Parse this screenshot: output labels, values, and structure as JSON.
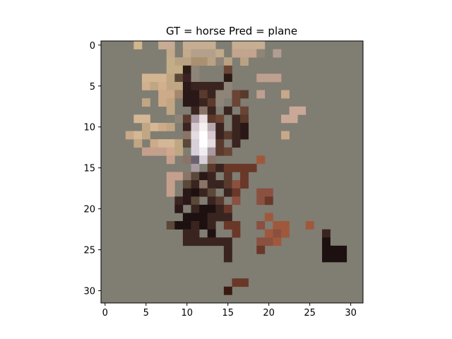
{
  "chart_data": {
    "type": "heatmap",
    "title": "GT = horse Pred = plane",
    "xlabel": "",
    "ylabel": "",
    "xlim": [
      -0.5,
      31.5
    ],
    "ylim": [
      31.5,
      -0.5
    ],
    "xticks": [
      0,
      5,
      10,
      15,
      20,
      25,
      30
    ],
    "yticks": [
      0,
      5,
      10,
      15,
      20,
      25,
      30
    ],
    "grid": false,
    "background_color": "#807d73",
    "pixels": [
      {
        "r": 0,
        "c": 4,
        "color": "#d2b78e"
      },
      {
        "r": 0,
        "c": 7,
        "color": "#c7ab94"
      },
      {
        "r": 0,
        "c": 8,
        "color": "#c7ab94"
      },
      {
        "r": 0,
        "c": 10,
        "color": "#c6ae93"
      },
      {
        "r": 0,
        "c": 11,
        "color": "#c6ae93"
      },
      {
        "r": 0,
        "c": 12,
        "color": "#c6ae93"
      },
      {
        "r": 0,
        "c": 13,
        "color": "#c6ae93"
      },
      {
        "r": 0,
        "c": 16,
        "color": "#c6ae93"
      },
      {
        "r": 0,
        "c": 17,
        "color": "#c6ae93"
      },
      {
        "r": 0,
        "c": 18,
        "color": "#c6ae93"
      },
      {
        "r": 0,
        "c": 19,
        "color": "#c6ae93"
      },
      {
        "r": 1,
        "c": 8,
        "color": "#c2aa8a"
      },
      {
        "r": 1,
        "c": 10,
        "color": "#c2aa8a"
      },
      {
        "r": 1,
        "c": 11,
        "color": "#b4a08a"
      },
      {
        "r": 1,
        "c": 12,
        "color": "#b4a08a"
      },
      {
        "r": 1,
        "c": 13,
        "color": "#b4a08a"
      },
      {
        "r": 1,
        "c": 14,
        "color": "#c2aa8a"
      },
      {
        "r": 1,
        "c": 16,
        "color": "#c2a48f"
      },
      {
        "r": 1,
        "c": 17,
        "color": "#c2a48f"
      },
      {
        "r": 1,
        "c": 18,
        "color": "#c2a48f"
      },
      {
        "r": 1,
        "c": 19,
        "color": "#8f8478"
      },
      {
        "r": 1,
        "c": 21,
        "color": "#b29d93"
      },
      {
        "r": 2,
        "c": 8,
        "color": "#c3ae88"
      },
      {
        "r": 2,
        "c": 9,
        "color": "#b9a284"
      },
      {
        "r": 2,
        "c": 10,
        "color": "#b9a284"
      },
      {
        "r": 2,
        "c": 11,
        "color": "#a89070"
      },
      {
        "r": 2,
        "c": 12,
        "color": "#a89070"
      },
      {
        "r": 2,
        "c": 13,
        "color": "#b9a284"
      },
      {
        "r": 2,
        "c": 14,
        "color": "#8f8478"
      },
      {
        "r": 2,
        "c": 15,
        "color": "#b9a284"
      },
      {
        "r": 2,
        "c": 17,
        "color": "#b9a284"
      },
      {
        "r": 3,
        "c": 8,
        "color": "#c3ae88"
      },
      {
        "r": 3,
        "c": 9,
        "color": "#c3ae88"
      },
      {
        "r": 3,
        "c": 10,
        "color": "#2c1e14"
      },
      {
        "r": 3,
        "c": 11,
        "color": "#8f8478"
      },
      {
        "r": 3,
        "c": 15,
        "color": "#6a4434"
      },
      {
        "r": 4,
        "c": 5,
        "color": "#d4b591"
      },
      {
        "r": 4,
        "c": 6,
        "color": "#d4b591"
      },
      {
        "r": 4,
        "c": 7,
        "color": "#d4b591"
      },
      {
        "r": 4,
        "c": 8,
        "color": "#c0a683"
      },
      {
        "r": 4,
        "c": 9,
        "color": "#5a4838"
      },
      {
        "r": 4,
        "c": 10,
        "color": "#3c2224"
      },
      {
        "r": 4,
        "c": 11,
        "color": "#8f8478"
      },
      {
        "r": 4,
        "c": 15,
        "color": "#2a1a14"
      },
      {
        "r": 4,
        "c": 19,
        "color": "#bea090"
      },
      {
        "r": 4,
        "c": 20,
        "color": "#bea090"
      },
      {
        "r": 4,
        "c": 21,
        "color": "#bea090"
      },
      {
        "r": 5,
        "c": 5,
        "color": "#d0b08e"
      },
      {
        "r": 5,
        "c": 6,
        "color": "#c0a683"
      },
      {
        "r": 5,
        "c": 7,
        "color": "#d0b08e"
      },
      {
        "r": 5,
        "c": 8,
        "color": "#c0a683"
      },
      {
        "r": 5,
        "c": 9,
        "color": "#c0a683"
      },
      {
        "r": 5,
        "c": 10,
        "color": "#2c1a18"
      },
      {
        "r": 5,
        "c": 11,
        "color": "#3a2420"
      },
      {
        "r": 5,
        "c": 12,
        "color": "#3a2420"
      },
      {
        "r": 5,
        "c": 13,
        "color": "#3a2420"
      },
      {
        "r": 5,
        "c": 14,
        "color": "#3a2420"
      },
      {
        "r": 5,
        "c": 15,
        "color": "#8f8478"
      },
      {
        "r": 6,
        "c": 7,
        "color": "#cdaa88"
      },
      {
        "r": 6,
        "c": 8,
        "color": "#cdaa88"
      },
      {
        "r": 6,
        "c": 9,
        "color": "#a4876c"
      },
      {
        "r": 6,
        "c": 10,
        "color": "#2a1818"
      },
      {
        "r": 6,
        "c": 11,
        "color": "#2a1818"
      },
      {
        "r": 6,
        "c": 12,
        "color": "#5a3a2c"
      },
      {
        "r": 6,
        "c": 13,
        "color": "#3a2420"
      },
      {
        "r": 6,
        "c": 14,
        "color": "#8f8478"
      },
      {
        "r": 6,
        "c": 15,
        "color": "#8f8478"
      },
      {
        "r": 6,
        "c": 16,
        "color": "#6a4434"
      },
      {
        "r": 6,
        "c": 17,
        "color": "#5a3a2c"
      },
      {
        "r": 6,
        "c": 19,
        "color": "#bea090"
      },
      {
        "r": 6,
        "c": 22,
        "color": "#c8a888"
      },
      {
        "r": 7,
        "c": 5,
        "color": "#c0a683"
      },
      {
        "r": 7,
        "c": 7,
        "color": "#cdaa88"
      },
      {
        "r": 7,
        "c": 8,
        "color": "#c0a683"
      },
      {
        "r": 7,
        "c": 10,
        "color": "#2a1818"
      },
      {
        "r": 7,
        "c": 11,
        "color": "#2a1818"
      },
      {
        "r": 7,
        "c": 12,
        "color": "#3a2420"
      },
      {
        "r": 7,
        "c": 13,
        "color": "#5a3a2c"
      },
      {
        "r": 7,
        "c": 14,
        "color": "#8f8478"
      },
      {
        "r": 7,
        "c": 16,
        "color": "#6a4434"
      },
      {
        "r": 8,
        "c": 8,
        "color": "#c0a683"
      },
      {
        "r": 8,
        "c": 11,
        "color": "#3a2420"
      },
      {
        "r": 8,
        "c": 12,
        "color": "#8a7468"
      },
      {
        "r": 8,
        "c": 13,
        "color": "#3a2420"
      },
      {
        "r": 8,
        "c": 15,
        "color": "#3a2420"
      },
      {
        "r": 8,
        "c": 17,
        "color": "#6a4434"
      },
      {
        "r": 8,
        "c": 23,
        "color": "#c9a898"
      },
      {
        "r": 8,
        "c": 24,
        "color": "#c9a898"
      },
      {
        "r": 9,
        "c": 4,
        "color": "#d4b896"
      },
      {
        "r": 9,
        "c": 5,
        "color": "#d4b896"
      },
      {
        "r": 9,
        "c": 9,
        "color": "#8f8478"
      },
      {
        "r": 9,
        "c": 10,
        "color": "#5a3a2c"
      },
      {
        "r": 9,
        "c": 11,
        "color": "#a89aa0"
      },
      {
        "r": 9,
        "c": 12,
        "color": "#e8dce0"
      },
      {
        "r": 9,
        "c": 13,
        "color": "#5a3a2c"
      },
      {
        "r": 9,
        "c": 14,
        "color": "#6a4434"
      },
      {
        "r": 9,
        "c": 16,
        "color": "#3a2420"
      },
      {
        "r": 9,
        "c": 17,
        "color": "#5a3a2c"
      },
      {
        "r": 9,
        "c": 22,
        "color": "#c9a898"
      },
      {
        "r": 9,
        "c": 23,
        "color": "#c9a898"
      },
      {
        "r": 10,
        "c": 5,
        "color": "#c0a683"
      },
      {
        "r": 10,
        "c": 6,
        "color": "#d4b896"
      },
      {
        "r": 10,
        "c": 7,
        "color": "#cdaa88"
      },
      {
        "r": 10,
        "c": 8,
        "color": "#c0a683"
      },
      {
        "r": 10,
        "c": 10,
        "color": "#3a2420"
      },
      {
        "r": 10,
        "c": 11,
        "color": "#d8c8d0"
      },
      {
        "r": 10,
        "c": 12,
        "color": "#f4f0f0"
      },
      {
        "r": 10,
        "c": 13,
        "color": "#b8a8b0"
      },
      {
        "r": 10,
        "c": 14,
        "color": "#3a2420"
      },
      {
        "r": 10,
        "c": 16,
        "color": "#3a2420"
      },
      {
        "r": 10,
        "c": 17,
        "color": "#2a1818"
      },
      {
        "r": 11,
        "c": 3,
        "color": "#c8a888"
      },
      {
        "r": 11,
        "c": 4,
        "color": "#d4b896"
      },
      {
        "r": 11,
        "c": 5,
        "color": "#c0a683"
      },
      {
        "r": 11,
        "c": 10,
        "color": "#8a7468"
      },
      {
        "r": 11,
        "c": 11,
        "color": "#e4dce0"
      },
      {
        "r": 11,
        "c": 12,
        "color": "#ffffff"
      },
      {
        "r": 11,
        "c": 13,
        "color": "#d8c8d0"
      },
      {
        "r": 11,
        "c": 14,
        "color": "#3a2420"
      },
      {
        "r": 11,
        "c": 15,
        "color": "#5a3a2c"
      },
      {
        "r": 11,
        "c": 16,
        "color": "#3a2420"
      },
      {
        "r": 11,
        "c": 17,
        "color": "#2a1818"
      },
      {
        "r": 11,
        "c": 22,
        "color": "#c8a888"
      },
      {
        "r": 12,
        "c": 4,
        "color": "#c0a683"
      },
      {
        "r": 12,
        "c": 6,
        "color": "#cdaa88"
      },
      {
        "r": 12,
        "c": 7,
        "color": "#d4b896"
      },
      {
        "r": 12,
        "c": 8,
        "color": "#d4b896"
      },
      {
        "r": 12,
        "c": 9,
        "color": "#c0a683"
      },
      {
        "r": 12,
        "c": 10,
        "color": "#5a4838"
      },
      {
        "r": 12,
        "c": 11,
        "color": "#d8d0d8"
      },
      {
        "r": 12,
        "c": 12,
        "color": "#ffffff"
      },
      {
        "r": 12,
        "c": 13,
        "color": "#e4dce0"
      },
      {
        "r": 12,
        "c": 14,
        "color": "#5a3a2c"
      },
      {
        "r": 12,
        "c": 16,
        "color": "#3a2420"
      },
      {
        "r": 13,
        "c": 5,
        "color": "#c4a08c"
      },
      {
        "r": 13,
        "c": 6,
        "color": "#c4a08c"
      },
      {
        "r": 13,
        "c": 7,
        "color": "#c4a08c"
      },
      {
        "r": 13,
        "c": 8,
        "color": "#d0a890"
      },
      {
        "r": 13,
        "c": 9,
        "color": "#c0a683"
      },
      {
        "r": 13,
        "c": 11,
        "color": "#d8d0d8"
      },
      {
        "r": 13,
        "c": 12,
        "color": "#f0ecf0"
      },
      {
        "r": 13,
        "c": 13,
        "color": "#a89aa0"
      },
      {
        "r": 13,
        "c": 14,
        "color": "#5a3a2c"
      },
      {
        "r": 13,
        "c": 15,
        "color": "#6a4434"
      },
      {
        "r": 14,
        "c": 8,
        "color": "#c4a08c"
      },
      {
        "r": 14,
        "c": 10,
        "color": "#8a7468"
      },
      {
        "r": 14,
        "c": 11,
        "color": "#6a6070"
      },
      {
        "r": 14,
        "c": 12,
        "color": "#d8d0d8"
      },
      {
        "r": 14,
        "c": 13,
        "color": "#8a7468"
      },
      {
        "r": 14,
        "c": 19,
        "color": "#a0583c"
      },
      {
        "r": 15,
        "c": 11,
        "color": "#a89aa0"
      },
      {
        "r": 15,
        "c": 13,
        "color": "#5a3a2c"
      },
      {
        "r": 15,
        "c": 14,
        "color": "#3a2420"
      },
      {
        "r": 15,
        "c": 15,
        "color": "#6a3828"
      },
      {
        "r": 15,
        "c": 16,
        "color": "#6a3828"
      },
      {
        "r": 15,
        "c": 17,
        "color": "#6a3828"
      },
      {
        "r": 15,
        "c": 18,
        "color": "#6a3828"
      },
      {
        "r": 16,
        "c": 8,
        "color": "#c4a08c"
      },
      {
        "r": 16,
        "c": 9,
        "color": "#c4a08c"
      },
      {
        "r": 16,
        "c": 10,
        "color": "#8a7468"
      },
      {
        "r": 16,
        "c": 11,
        "color": "#5a4838"
      },
      {
        "r": 16,
        "c": 12,
        "color": "#2a1818"
      },
      {
        "r": 16,
        "c": 13,
        "color": "#3a2420"
      },
      {
        "r": 16,
        "c": 15,
        "color": "#5a3a2c"
      },
      {
        "r": 16,
        "c": 17,
        "color": "#6a3828"
      },
      {
        "r": 17,
        "c": 8,
        "color": "#c4a08c"
      },
      {
        "r": 17,
        "c": 10,
        "color": "#5a4838"
      },
      {
        "r": 17,
        "c": 11,
        "color": "#3a2420"
      },
      {
        "r": 17,
        "c": 12,
        "color": "#8a7468"
      },
      {
        "r": 17,
        "c": 13,
        "color": "#3a2420"
      },
      {
        "r": 17,
        "c": 14,
        "color": "#3a2420"
      },
      {
        "r": 17,
        "c": 15,
        "color": "#5a3a2c"
      },
      {
        "r": 17,
        "c": 16,
        "color": "#8a5040"
      },
      {
        "r": 17,
        "c": 17,
        "color": "#6a3828"
      },
      {
        "r": 18,
        "c": 8,
        "color": "#c4a08c"
      },
      {
        "r": 18,
        "c": 10,
        "color": "#2a1818"
      },
      {
        "r": 18,
        "c": 11,
        "color": "#1c1010"
      },
      {
        "r": 18,
        "c": 12,
        "color": "#3a2420"
      },
      {
        "r": 18,
        "c": 13,
        "color": "#5a4838"
      },
      {
        "r": 18,
        "c": 15,
        "color": "#3a2420"
      },
      {
        "r": 18,
        "c": 16,
        "color": "#6a3828"
      },
      {
        "r": 18,
        "c": 19,
        "color": "#8a5040"
      },
      {
        "r": 18,
        "c": 20,
        "color": "#8a5040"
      },
      {
        "r": 19,
        "c": 9,
        "color": "#3a2420"
      },
      {
        "r": 19,
        "c": 10,
        "color": "#2a1818"
      },
      {
        "r": 19,
        "c": 11,
        "color": "#5a4838"
      },
      {
        "r": 19,
        "c": 13,
        "color": "#3a2420"
      },
      {
        "r": 19,
        "c": 14,
        "color": "#5a3a2c"
      },
      {
        "r": 19,
        "c": 16,
        "color": "#8a5040"
      },
      {
        "r": 19,
        "c": 19,
        "color": "#8a5040"
      },
      {
        "r": 19,
        "c": 20,
        "color": "#6a3828"
      },
      {
        "r": 20,
        "c": 9,
        "color": "#2a1818"
      },
      {
        "r": 20,
        "c": 11,
        "color": "#3a2420"
      },
      {
        "r": 20,
        "c": 12,
        "color": "#1c1010"
      },
      {
        "r": 20,
        "c": 13,
        "color": "#1c1010"
      },
      {
        "r": 20,
        "c": 14,
        "color": "#3a2420"
      },
      {
        "r": 20,
        "c": 15,
        "color": "#6a3828"
      },
      {
        "r": 21,
        "c": 10,
        "color": "#1c1010"
      },
      {
        "r": 21,
        "c": 11,
        "color": "#1c1010"
      },
      {
        "r": 21,
        "c": 12,
        "color": "#1c1010"
      },
      {
        "r": 21,
        "c": 13,
        "color": "#3a2420"
      },
      {
        "r": 21,
        "c": 14,
        "color": "#3a2420"
      },
      {
        "r": 21,
        "c": 15,
        "color": "#3a2420"
      },
      {
        "r": 21,
        "c": 20,
        "color": "#a0583c"
      },
      {
        "r": 22,
        "c": 8,
        "color": "#5a4838"
      },
      {
        "r": 22,
        "c": 9,
        "color": "#1c1010"
      },
      {
        "r": 22,
        "c": 10,
        "color": "#1c1010"
      },
      {
        "r": 22,
        "c": 11,
        "color": "#3a2420"
      },
      {
        "r": 22,
        "c": 12,
        "color": "#1c1010"
      },
      {
        "r": 22,
        "c": 13,
        "color": "#3a2420"
      },
      {
        "r": 22,
        "c": 15,
        "color": "#6a3828"
      },
      {
        "r": 22,
        "c": 16,
        "color": "#6a3828"
      },
      {
        "r": 22,
        "c": 19,
        "color": "#8a5040"
      },
      {
        "r": 22,
        "c": 21,
        "color": "#a0583c"
      },
      {
        "r": 22,
        "c": 22,
        "color": "#a0583c"
      },
      {
        "r": 22,
        "c": 25,
        "color": "#a0583c"
      },
      {
        "r": 23,
        "c": 10,
        "color": "#3a2420"
      },
      {
        "r": 23,
        "c": 11,
        "color": "#3a2420"
      },
      {
        "r": 23,
        "c": 13,
        "color": "#1c1010"
      },
      {
        "r": 23,
        "c": 16,
        "color": "#6a3828"
      },
      {
        "r": 23,
        "c": 20,
        "color": "#a0583c"
      },
      {
        "r": 23,
        "c": 21,
        "color": "#8a5040"
      },
      {
        "r": 23,
        "c": 22,
        "color": "#a0583c"
      },
      {
        "r": 23,
        "c": 27,
        "color": "#3a2420"
      },
      {
        "r": 24,
        "c": 10,
        "color": "#3a2420"
      },
      {
        "r": 24,
        "c": 11,
        "color": "#3a2420"
      },
      {
        "r": 24,
        "c": 12,
        "color": "#3a2420"
      },
      {
        "r": 24,
        "c": 13,
        "color": "#3a2420"
      },
      {
        "r": 24,
        "c": 14,
        "color": "#3a2420"
      },
      {
        "r": 24,
        "c": 15,
        "color": "#3a2420"
      },
      {
        "r": 24,
        "c": 19,
        "color": "#8a5040"
      },
      {
        "r": 24,
        "c": 20,
        "color": "#8a5040"
      },
      {
        "r": 24,
        "c": 21,
        "color": "#a0583c"
      },
      {
        "r": 24,
        "c": 27,
        "color": "#1c1010"
      },
      {
        "r": 25,
        "c": 15,
        "color": "#3a2420"
      },
      {
        "r": 25,
        "c": 19,
        "color": "#6a3828"
      },
      {
        "r": 25,
        "c": 27,
        "color": "#1c1010"
      },
      {
        "r": 25,
        "c": 28,
        "color": "#1c1010"
      },
      {
        "r": 25,
        "c": 29,
        "color": "#1c1010"
      },
      {
        "r": 26,
        "c": 15,
        "color": "#3a2420"
      },
      {
        "r": 26,
        "c": 27,
        "color": "#1c1010"
      },
      {
        "r": 26,
        "c": 28,
        "color": "#1c1010"
      },
      {
        "r": 26,
        "c": 29,
        "color": "#1c1010"
      },
      {
        "r": 29,
        "c": 16,
        "color": "#6a3828"
      },
      {
        "r": 29,
        "c": 17,
        "color": "#6a3828"
      },
      {
        "r": 30,
        "c": 15,
        "color": "#3a1a10"
      }
    ]
  }
}
